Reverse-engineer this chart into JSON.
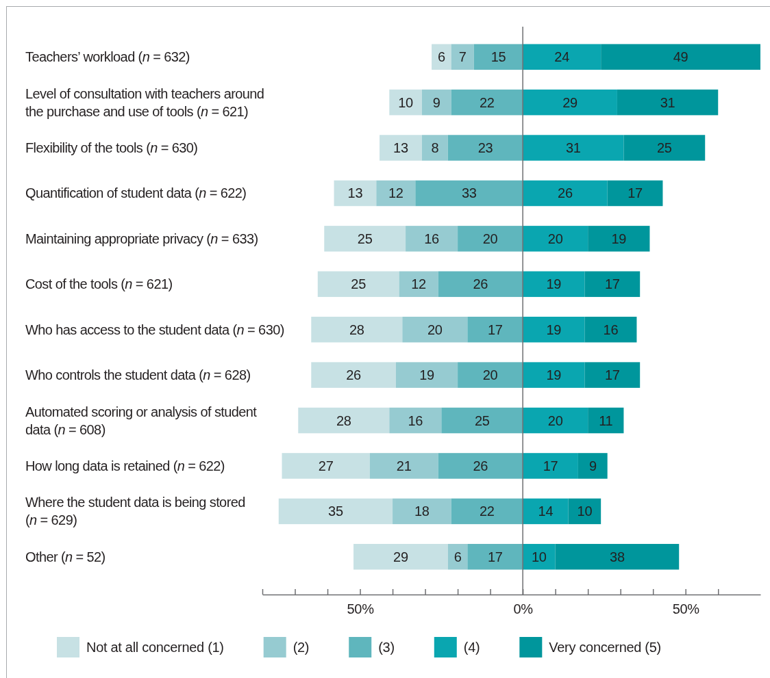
{
  "chart_data": {
    "type": "bar",
    "orientation": "horizontal",
    "categories": [
      "Teachers’ workload (n = 632)",
      "Level of consultation with teachers around the purchase and use of tools (n = 621)",
      "Flexibility of the tools (n = 630)",
      "Quantification of student data (n = 622)",
      "Maintaining appropriate privacy (n = 633)",
      "Cost of the tools (n = 621)",
      "Who has access to the student data (n = 630)",
      "Who controls the student data (n = 628)",
      "Automated scoring or analysis of student data (n = 608)",
      "How long data is retained (n = 622)",
      "Where the student data is being stored (n = 629)",
      "Other (n = 52)"
    ],
    "series": [
      {
        "name": "Not at all concerned (1)",
        "color": "#c7e1e4",
        "values": [
          6,
          10,
          13,
          13,
          25,
          25,
          28,
          26,
          28,
          27,
          35,
          29
        ],
        "base": [
          -28,
          -41,
          -44,
          -58,
          -61,
          -63,
          -65,
          -65,
          -69,
          -74,
          -75,
          -52
        ]
      },
      {
        "name": "(2)",
        "color": "#96cbd1",
        "values": [
          7,
          9,
          8,
          12,
          16,
          12,
          20,
          19,
          16,
          21,
          18,
          6
        ],
        "base": [
          -22,
          -31,
          -31,
          -45,
          -36,
          -38,
          -37,
          -39,
          -41,
          -47,
          -40,
          -23
        ]
      },
      {
        "name": "(3)",
        "color": "#5fb6bd",
        "values": [
          15,
          22,
          23,
          33,
          20,
          26,
          17,
          20,
          25,
          26,
          22,
          17
        ],
        "base": [
          -15,
          -22,
          -23,
          -33,
          -20,
          -26,
          -17,
          -20,
          -25,
          -26,
          -22,
          -17
        ]
      },
      {
        "name": "(4)",
        "color": "#0aa6b0",
        "values": [
          24,
          29,
          31,
          26,
          20,
          19,
          19,
          19,
          20,
          17,
          14,
          10
        ],
        "base": [
          0,
          0,
          0,
          0,
          0,
          0,
          0,
          0,
          0,
          0,
          0,
          0
        ]
      },
      {
        "name": "Very concerned (5)",
        "color": "#00969c",
        "values": [
          49,
          31,
          25,
          17,
          19,
          17,
          16,
          17,
          11,
          9,
          10,
          38
        ],
        "base": [
          24,
          29,
          31,
          26,
          20,
          19,
          19,
          19,
          20,
          17,
          14,
          10
        ]
      }
    ],
    "xlim": [
      -80,
      73
    ],
    "xticks": [
      {
        "value": -80,
        "label": null
      },
      {
        "value": -70,
        "label": null
      },
      {
        "value": -60,
        "label": null
      },
      {
        "value": -50,
        "label": "50%"
      },
      {
        "value": -40,
        "label": null
      },
      {
        "value": -30,
        "label": null
      },
      {
        "value": -20,
        "label": null
      },
      {
        "value": -10,
        "label": null
      },
      {
        "value": 0,
        "label": "0%"
      },
      {
        "value": 10,
        "label": null
      },
      {
        "value": 20,
        "label": null
      },
      {
        "value": 30,
        "label": null
      },
      {
        "value": 40,
        "label": null
      },
      {
        "value": 50,
        "label": "50%"
      },
      {
        "value": 60,
        "label": null
      }
    ],
    "data_labels": true,
    "legend": "bottom"
  }
}
